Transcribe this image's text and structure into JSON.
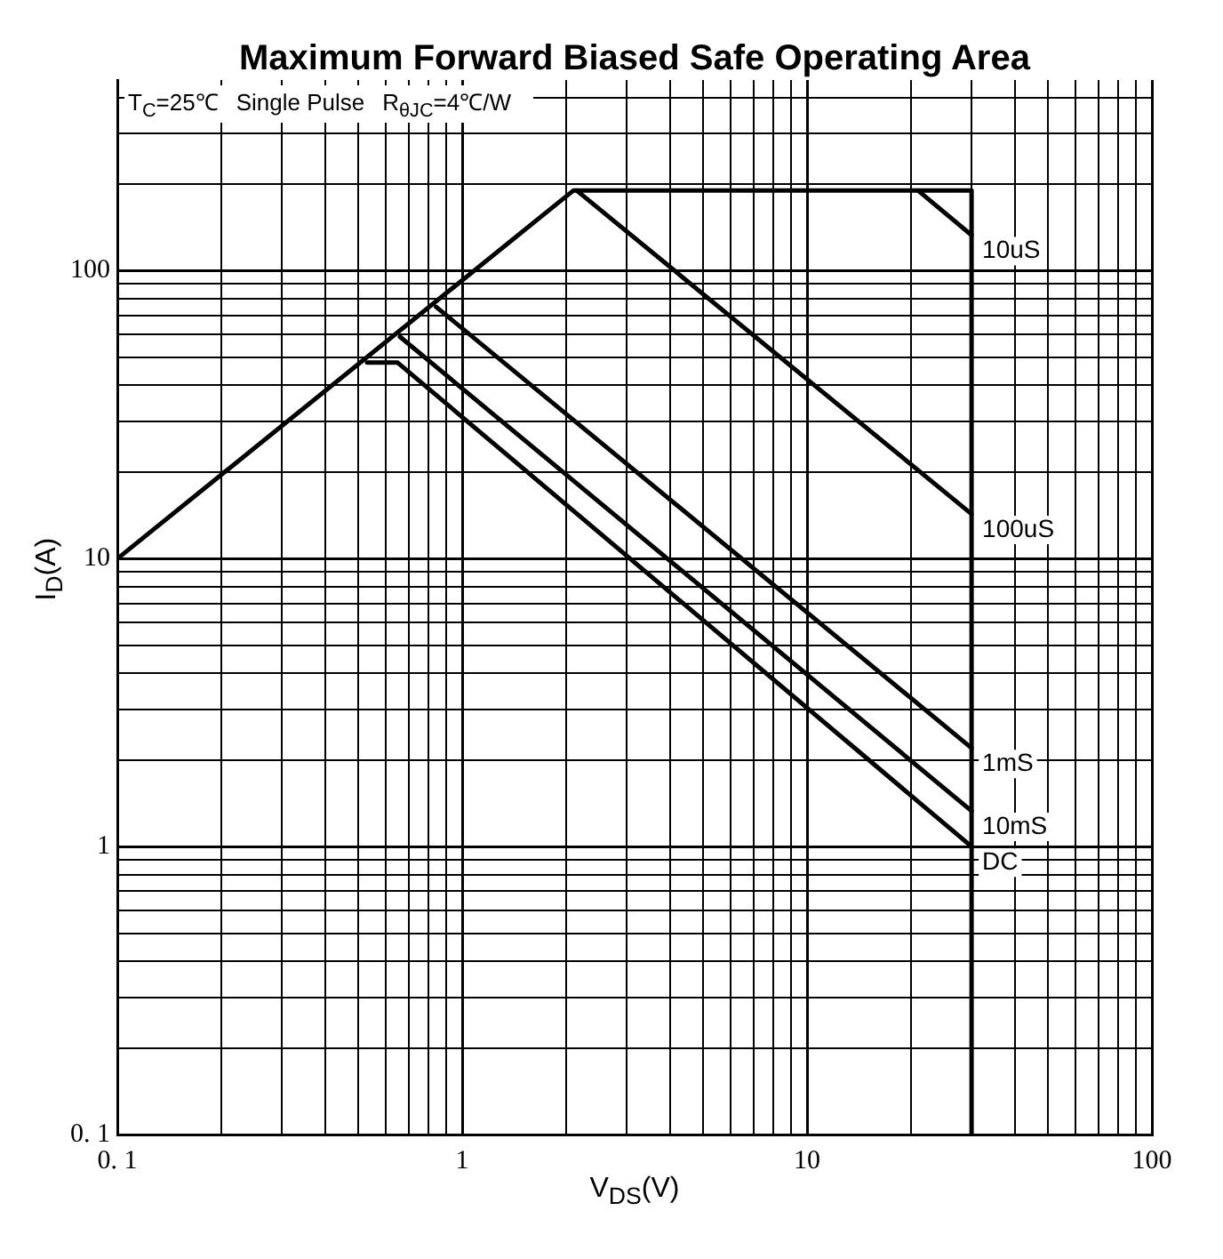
{
  "chart_data": {
    "type": "line",
    "title": "Maximum Forward Biased Safe Operating Area",
    "xlabel": "V$_{DS}$(V)",
    "ylabel": "I$_{D}$(A)",
    "log": "xy",
    "grid": true,
    "legend": false,
    "marker": "none",
    "line_style": "solid",
    "xlim": [
      0.1,
      100
    ],
    "ylim": [
      0.1,
      460
    ],
    "xticks": [
      {
        "value": 0.1,
        "label": "0. 1"
      },
      {
        "value": 0.2,
        "label": null
      },
      {
        "value": 0.3,
        "label": null
      },
      {
        "value": 0.4,
        "label": null
      },
      {
        "value": 0.5,
        "label": null
      },
      {
        "value": 0.6,
        "label": null
      },
      {
        "value": 0.7,
        "label": null
      },
      {
        "value": 0.8,
        "label": null
      },
      {
        "value": 0.9,
        "label": null
      },
      1,
      {
        "value": 2,
        "label": null
      },
      {
        "value": 3,
        "label": null
      },
      {
        "value": 4,
        "label": null
      },
      {
        "value": 5,
        "label": null
      },
      {
        "value": 6,
        "label": null
      },
      {
        "value": 7,
        "label": null
      },
      {
        "value": 8,
        "label": null
      },
      {
        "value": 9,
        "label": null
      },
      10,
      {
        "value": 20,
        "label": null
      },
      {
        "value": 30,
        "label": null
      },
      {
        "value": 40,
        "label": null
      },
      {
        "value": 50,
        "label": null
      },
      {
        "value": 60,
        "label": null
      },
      {
        "value": 70,
        "label": null
      },
      {
        "value": 80,
        "label": null
      },
      {
        "value": 90,
        "label": null
      },
      100
    ],
    "yticks": [
      {
        "value": 0.1,
        "label": "0. 1"
      },
      {
        "value": 0.2,
        "label": null
      },
      {
        "value": 0.3,
        "label": null
      },
      {
        "value": 0.4,
        "label": null
      },
      {
        "value": 0.5,
        "label": null
      },
      {
        "value": 0.6,
        "label": null
      },
      {
        "value": 0.7,
        "label": null
      },
      {
        "value": 0.8,
        "label": null
      },
      {
        "value": 0.9,
        "label": null
      },
      1,
      {
        "value": 2,
        "label": null
      },
      {
        "value": 3,
        "label": null
      },
      {
        "value": 4,
        "label": null
      },
      {
        "value": 5,
        "label": null
      },
      {
        "value": 6,
        "label": null
      },
      {
        "value": 7,
        "label": null
      },
      {
        "value": 8,
        "label": null
      },
      {
        "value": 9,
        "label": null
      },
      10,
      {
        "value": 20,
        "label": null
      },
      {
        "value": 30,
        "label": null
      },
      {
        "value": 40,
        "label": null
      },
      {
        "value": 50,
        "label": null
      },
      {
        "value": 60,
        "label": null
      },
      {
        "value": 70,
        "label": null
      },
      {
        "value": 80,
        "label": null
      },
      {
        "value": 90,
        "label": null
      },
      100,
      {
        "value": 200,
        "label": null
      },
      {
        "value": 300,
        "label": null
      },
      {
        "value": 400,
        "label": null
      }
    ],
    "annotations": [
      "T$_{C}$=25℃",
      "Single Pulse",
      "R$_{θJC}$=4℃/W"
    ],
    "series": [
      {
        "color": "#000000",
        "x": [
          0.1,
          2.1,
          30,
          30
        ],
        "values": [
          10,
          190,
          190,
          0.1
        ]
      },
      {
        "name": "10uS",
        "color": "#000000",
        "x": [
          21,
          30
        ],
        "values": [
          190,
          133
        ]
      },
      {
        "name": "100uS",
        "color": "#000000",
        "x": [
          2.15,
          30
        ],
        "values": [
          190,
          14.3
        ]
      },
      {
        "name": "1mS",
        "color": "#000000",
        "x": [
          0.84,
          30
        ],
        "values": [
          75,
          2.2
        ]
      },
      {
        "name": "10mS",
        "color": "#000000",
        "x": [
          0.66,
          30
        ],
        "values": [
          59,
          1.33
        ]
      },
      {
        "name": "DC",
        "color": "#000000",
        "x": [
          0.53,
          0.65,
          30
        ],
        "values": [
          48,
          48,
          1.0
        ]
      }
    ]
  }
}
